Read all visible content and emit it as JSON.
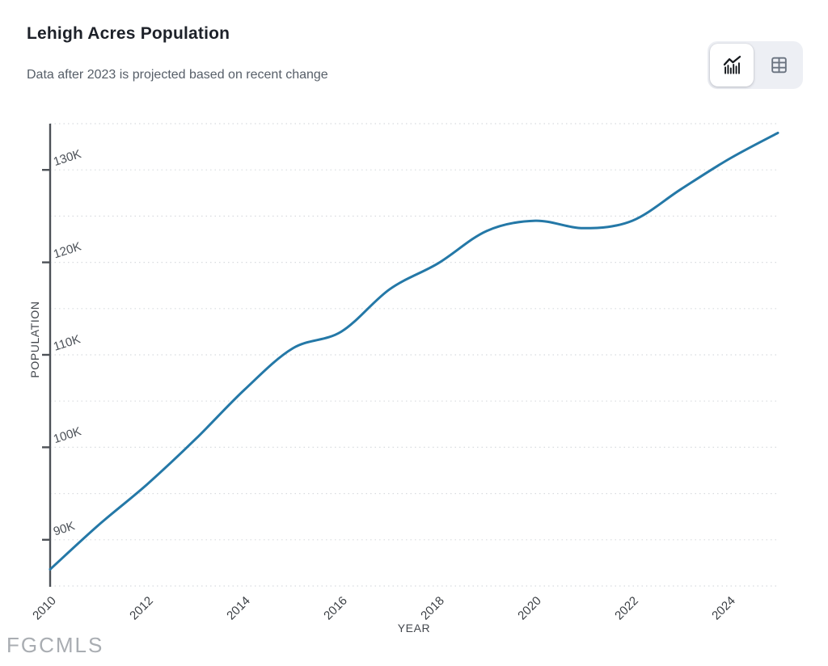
{
  "header": {
    "title": "Lehigh Acres Population",
    "subtitle": "Data after 2023 is projected based on recent change"
  },
  "view_toggle": {
    "options": [
      {
        "id": "chart-view",
        "icon": "line-chart-icon",
        "selected": true
      },
      {
        "id": "table-view",
        "icon": "table-grid-icon",
        "selected": false
      }
    ]
  },
  "chart_data": {
    "type": "line",
    "title": "Lehigh Acres Population",
    "note": "Data after 2023 is projected based on recent change",
    "xlabel": "YEAR",
    "ylabel": "POPULATION",
    "x": [
      2010,
      2011,
      2012,
      2013,
      2014,
      2015,
      2016,
      2017,
      2018,
      2019,
      2020,
      2021,
      2022,
      2023,
      2024,
      2025
    ],
    "series": [
      {
        "name": "Population",
        "values": [
          86800,
          91600,
          96000,
          100900,
          106200,
          110700,
          112500,
          117100,
          119900,
          123400,
          124500,
          123700,
          124500,
          127900,
          131200,
          134000
        ]
      }
    ],
    "xlim": [
      2010,
      2025
    ],
    "ylim": [
      85000,
      135000
    ],
    "yticks": [
      90000,
      100000,
      110000,
      120000,
      130000
    ],
    "ytick_format": "thousands-K",
    "xticks": [
      2010,
      2012,
      2014,
      2016,
      2018,
      2020,
      2022,
      2024
    ],
    "grid_step": 5000,
    "grid": "horizontal-dotted",
    "legend_position": "none",
    "line_color": "#2478a7"
  },
  "colors": {
    "accent_line": "#2478a7",
    "toggle_background": "#edeff4",
    "selected_toggle_background": "#ffffff",
    "gridline": "#d8dbdf",
    "axis": "#4d5157"
  },
  "watermark": {
    "text": "FGCMLS"
  }
}
